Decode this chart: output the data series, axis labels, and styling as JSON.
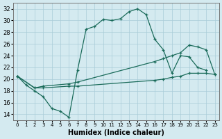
{
  "xlabel": "Humidex (Indice chaleur)",
  "bg_color": "#d4eaf0",
  "line_color": "#1a6b5a",
  "grid_color": "#aaccd8",
  "xlim": [
    -0.5,
    23.5
  ],
  "ylim": [
    13,
    33
  ],
  "xticks": [
    0,
    1,
    2,
    3,
    4,
    5,
    6,
    7,
    8,
    9,
    10,
    11,
    12,
    13,
    14,
    15,
    16,
    17,
    18,
    19,
    20,
    21,
    22,
    23
  ],
  "yticks": [
    14,
    16,
    18,
    20,
    22,
    24,
    26,
    28,
    30,
    32
  ],
  "line_main_x": [
    0,
    1,
    2,
    3,
    4,
    5,
    6,
    7,
    8,
    9,
    10,
    11,
    12,
    13,
    14,
    15,
    16,
    17,
    18,
    19,
    20,
    21,
    22
  ],
  "line_main_y": [
    20.5,
    19.0,
    18.0,
    17.0,
    15.0,
    14.5,
    13.5,
    21.5,
    28.5,
    29.0,
    30.2,
    30.0,
    30.3,
    31.5,
    32.0,
    31.0,
    26.8,
    25.0,
    21.0,
    24.0,
    23.8,
    22.0,
    21.5
  ],
  "line_upper_x": [
    0,
    2,
    3,
    6,
    7,
    16,
    17,
    18,
    19,
    20,
    21,
    22,
    23
  ],
  "line_upper_y": [
    20.5,
    18.5,
    18.8,
    19.2,
    19.5,
    23.0,
    23.5,
    24.0,
    24.5,
    25.8,
    25.5,
    25.0,
    20.8
  ],
  "line_lower_x": [
    0,
    2,
    3,
    6,
    7,
    16,
    17,
    18,
    19,
    20,
    21,
    22,
    23
  ],
  "line_lower_y": [
    20.5,
    18.5,
    18.5,
    18.8,
    18.8,
    19.8,
    20.0,
    20.3,
    20.5,
    21.0,
    21.0,
    21.0,
    20.8
  ]
}
